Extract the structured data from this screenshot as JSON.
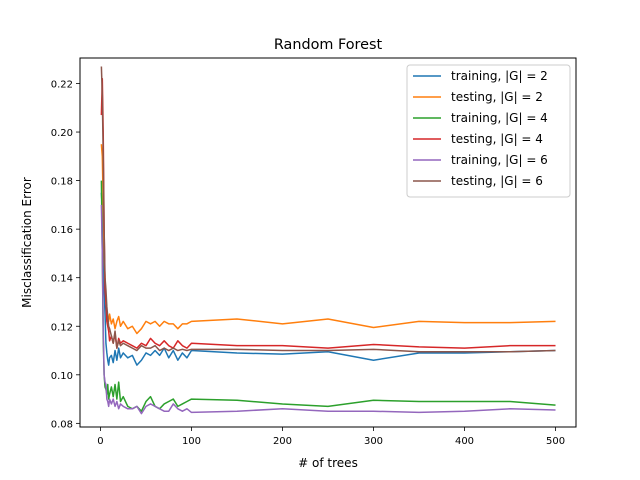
{
  "chart_data": {
    "type": "line",
    "title": "Random Forest",
    "xlabel": "# of trees",
    "ylabel": "Misclassification Error",
    "xlim": [
      -22.5,
      522.5
    ],
    "ylim": [
      0.0785,
      0.2305
    ],
    "xticks": [
      0,
      100,
      200,
      300,
      400,
      500
    ],
    "xtick_labels": [
      "0",
      "100",
      "200",
      "300",
      "400",
      "500"
    ],
    "yticks": [
      0.08,
      0.1,
      0.12,
      0.14,
      0.16,
      0.18,
      0.2,
      0.22
    ],
    "ytick_labels": [
      "0.08",
      "0.10",
      "0.12",
      "0.14",
      "0.16",
      "0.18",
      "0.20",
      "0.22"
    ],
    "grid": false,
    "legend_position": "top-right",
    "series": [
      {
        "name": "training, |G| = 2",
        "color": "#1f77b4",
        "x": [
          1,
          2,
          3,
          4,
          5,
          6,
          7,
          8,
          9,
          10,
          12,
          14,
          16,
          18,
          20,
          22,
          25,
          30,
          35,
          40,
          45,
          50,
          55,
          60,
          65,
          70,
          75,
          80,
          85,
          90,
          95,
          100,
          150,
          200,
          250,
          300,
          350,
          400,
          450,
          500
        ],
        "y": [
          0.175,
          0.168,
          0.155,
          0.135,
          0.125,
          0.113,
          0.109,
          0.106,
          0.104,
          0.107,
          0.108,
          0.105,
          0.11,
          0.106,
          0.111,
          0.107,
          0.109,
          0.107,
          0.108,
          0.104,
          0.106,
          0.109,
          0.108,
          0.11,
          0.108,
          0.111,
          0.107,
          0.11,
          0.106,
          0.109,
          0.107,
          0.11,
          0.109,
          0.1085,
          0.1095,
          0.106,
          0.109,
          0.109,
          0.1095,
          0.11
        ]
      },
      {
        "name": "testing, |G| = 2",
        "color": "#ff7f0e",
        "x": [
          1,
          2,
          3,
          4,
          5,
          6,
          7,
          8,
          9,
          10,
          12,
          14,
          16,
          18,
          20,
          22,
          25,
          30,
          35,
          40,
          45,
          50,
          55,
          60,
          65,
          70,
          75,
          80,
          85,
          90,
          95,
          100,
          150,
          200,
          250,
          300,
          350,
          400,
          450,
          500
        ],
        "y": [
          0.195,
          0.19,
          0.17,
          0.15,
          0.14,
          0.13,
          0.126,
          0.124,
          0.122,
          0.125,
          0.121,
          0.123,
          0.119,
          0.122,
          0.124,
          0.12,
          0.122,
          0.119,
          0.12,
          0.117,
          0.119,
          0.122,
          0.121,
          0.122,
          0.12,
          0.122,
          0.121,
          0.121,
          0.119,
          0.121,
          0.121,
          0.122,
          0.123,
          0.121,
          0.123,
          0.1195,
          0.122,
          0.1215,
          0.1215,
          0.122
        ]
      },
      {
        "name": "training, |G| = 4",
        "color": "#2ca02c",
        "x": [
          1,
          2,
          3,
          4,
          5,
          6,
          7,
          8,
          9,
          10,
          12,
          14,
          16,
          18,
          20,
          22,
          25,
          30,
          35,
          40,
          45,
          50,
          55,
          60,
          65,
          70,
          75,
          80,
          85,
          90,
          95,
          100,
          150,
          200,
          250,
          300,
          350,
          400,
          450,
          500
        ],
        "y": [
          0.18,
          0.15,
          0.115,
          0.1,
          0.095,
          0.094,
          0.092,
          0.096,
          0.09,
          0.092,
          0.095,
          0.091,
          0.096,
          0.09,
          0.097,
          0.089,
          0.091,
          0.087,
          0.086,
          0.087,
          0.085,
          0.089,
          0.091,
          0.087,
          0.086,
          0.088,
          0.089,
          0.09,
          0.087,
          0.088,
          0.089,
          0.09,
          0.0895,
          0.088,
          0.087,
          0.0895,
          0.089,
          0.089,
          0.089,
          0.0875
        ]
      },
      {
        "name": "testing, |G| = 4",
        "color": "#d62728",
        "x": [
          1,
          2,
          3,
          4,
          5,
          6,
          7,
          8,
          9,
          10,
          12,
          14,
          16,
          18,
          20,
          22,
          25,
          30,
          35,
          40,
          45,
          50,
          55,
          60,
          65,
          70,
          75,
          80,
          85,
          90,
          95,
          100,
          150,
          200,
          250,
          300,
          350,
          400,
          450,
          500
        ],
        "y": [
          0.207,
          0.222,
          0.2,
          0.16,
          0.135,
          0.13,
          0.122,
          0.12,
          0.118,
          0.114,
          0.116,
          0.113,
          0.117,
          0.111,
          0.115,
          0.113,
          0.114,
          0.113,
          0.112,
          0.111,
          0.113,
          0.112,
          0.115,
          0.113,
          0.112,
          0.114,
          0.112,
          0.111,
          0.114,
          0.112,
          0.111,
          0.113,
          0.112,
          0.112,
          0.111,
          0.1125,
          0.1115,
          0.111,
          0.112,
          0.112
        ]
      },
      {
        "name": "training, |G| = 6",
        "color": "#9467bd",
        "x": [
          1,
          2,
          3,
          4,
          5,
          6,
          7,
          8,
          9,
          10,
          12,
          14,
          16,
          18,
          20,
          22,
          25,
          30,
          35,
          40,
          45,
          50,
          55,
          60,
          65,
          70,
          75,
          80,
          85,
          90,
          95,
          100,
          150,
          200,
          250,
          300,
          350,
          400,
          450,
          500
        ],
        "y": [
          0.17,
          0.15,
          0.12,
          0.1,
          0.097,
          0.096,
          0.09,
          0.089,
          0.087,
          0.09,
          0.088,
          0.09,
          0.087,
          0.089,
          0.086,
          0.088,
          0.087,
          0.086,
          0.086,
          0.087,
          0.084,
          0.087,
          0.088,
          0.087,
          0.086,
          0.085,
          0.085,
          0.088,
          0.086,
          0.085,
          0.086,
          0.0845,
          0.085,
          0.086,
          0.085,
          0.085,
          0.0845,
          0.085,
          0.086,
          0.0855
        ]
      },
      {
        "name": "testing, |G| = 6",
        "color": "#8c564b",
        "x": [
          1,
          2,
          3,
          4,
          5,
          6,
          7,
          8,
          9,
          10,
          12,
          14,
          16,
          18,
          20,
          22,
          25,
          30,
          35,
          40,
          45,
          50,
          55,
          60,
          65,
          70,
          75,
          80,
          85,
          90,
          95,
          100,
          150,
          200,
          250,
          300,
          350,
          400,
          450,
          500
        ],
        "y": [
          0.227,
          0.215,
          0.19,
          0.16,
          0.14,
          0.135,
          0.128,
          0.124,
          0.12,
          0.119,
          0.116,
          0.113,
          0.118,
          0.111,
          0.114,
          0.112,
          0.113,
          0.112,
          0.111,
          0.11,
          0.112,
          0.111,
          0.111,
          0.112,
          0.11,
          0.111,
          0.11,
          0.111,
          0.11,
          0.1105,
          0.11,
          0.1105,
          0.1105,
          0.11,
          0.11,
          0.1105,
          0.1095,
          0.1095,
          0.1095,
          0.11
        ]
      }
    ]
  }
}
